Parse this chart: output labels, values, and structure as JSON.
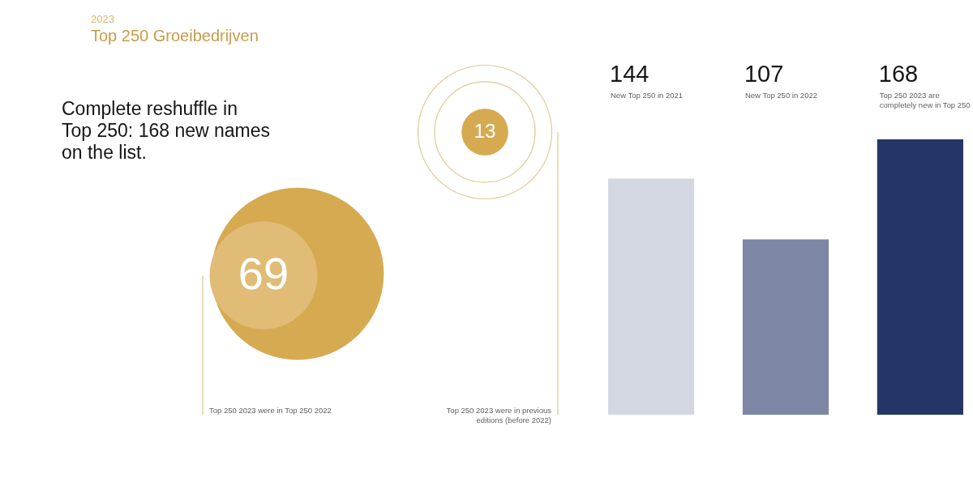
{
  "chart_data": [
    {
      "type": "other",
      "title": "Complete reshuffle in Top 250: 168 new names on the list.",
      "annotations": [
        "2023",
        "Top 250 Groeibedrijven"
      ],
      "categories": [
        "Top 250 2023 were in Top 250 2022",
        "Top 250 2023 were in previous editions (before 2022)"
      ],
      "values": [
        69,
        13
      ],
      "colors": [
        "#e0bc77",
        "#d6aa51"
      ],
      "data_labels": true
    },
    {
      "type": "bar",
      "categories": [
        "New Top 250 in 2021",
        "New Top 250 in 2022",
        "Top 250 2023 are completely new in Top 250"
      ],
      "values": [
        144,
        107,
        168
      ],
      "colors": [
        "#d3d7e2",
        "#7d86a4",
        "#253565"
      ],
      "data_labels": true
    }
  ]
}
